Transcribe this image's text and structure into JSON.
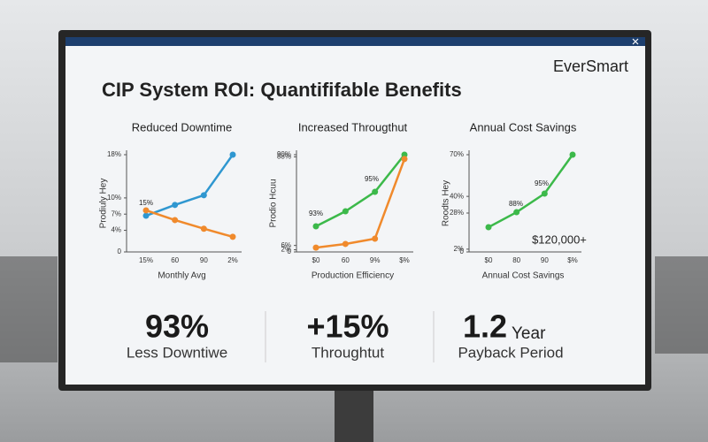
{
  "brand": "EverSmart",
  "title": "CIP System ROI: Quantififable Benefits",
  "chart_data": [
    {
      "type": "line",
      "title": "Reduced Downtime",
      "y_label": "Prodiuly Hey",
      "x_label": "Monthly Avg",
      "categories": [
        "15%",
        "60",
        "90",
        "2%"
      ],
      "ylim": [
        0,
        18
      ],
      "yticks": [
        {
          "value": 18,
          "label": "18%"
        },
        {
          "value": 10,
          "label": "10%"
        },
        {
          "value": 7,
          "label": "7%"
        },
        {
          "value": 4,
          "label": "4%"
        },
        0
      ],
      "series": [
        {
          "color": "#2f97d0",
          "values": [
            6.7,
            8.7,
            10.5,
            18
          ]
        },
        {
          "color": "#f08a2c",
          "values": [
            7.7,
            5.9,
            4.3,
            2.8
          ]
        }
      ],
      "annotations": [
        "15%"
      ]
    },
    {
      "type": "line",
      "title": "Increased Througthut",
      "y_label": "Prodio Hcuu",
      "x_label": "Production Efficiency",
      "categories": [
        "$0",
        "60",
        "9%",
        "$%"
      ],
      "ylim": [
        0,
        90
      ],
      "yticks": [
        {
          "value": 90,
          "label": "90%"
        },
        {
          "value": 88,
          "label": "88%"
        },
        {
          "value": 6,
          "label": "6%"
        },
        {
          "value": 2,
          "label": "2%"
        },
        0
      ],
      "series": [
        {
          "color": "#3cb94a",
          "values": [
            23.7,
            37.6,
            55.6,
            90
          ]
        },
        {
          "color": "#f08a2c",
          "values": [
            4,
            7.4,
            12.3,
            86
          ]
        }
      ],
      "annotations": [
        "93%",
        "95%"
      ]
    },
    {
      "type": "line",
      "title": "Annual Cost Savings",
      "y_label": "Roodts Hey",
      "x_label": "Annual Cost Savings",
      "categories": [
        "$0",
        "80",
        "90",
        "$%"
      ],
      "ylim": [
        0,
        70
      ],
      "yticks": [
        {
          "value": 70,
          "label": "70%"
        },
        {
          "value": 40,
          "label": "40%"
        },
        {
          "value": 28,
          "label": "28%"
        },
        {
          "value": 2,
          "label": "2%"
        },
        0
      ],
      "series": [
        {
          "color": "#3cb94a",
          "values": [
            17.8,
            28.6,
            42,
            70
          ]
        }
      ],
      "annotations": [
        "88%",
        "95%",
        "$120,000+"
      ]
    }
  ],
  "kpis": [
    {
      "value": "93%",
      "label": "Less Downtiwe"
    },
    {
      "value": "+15%",
      "label": "Throughtut"
    },
    {
      "value": "1.2",
      "unit": "Year",
      "label": "Payback Period"
    }
  ]
}
